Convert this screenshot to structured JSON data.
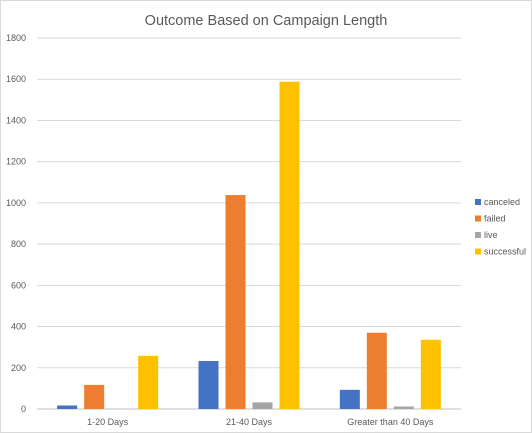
{
  "chart_data": {
    "type": "bar",
    "title": "Outcome Based on Campaign Length",
    "categories": [
      "1-20 Days",
      "21-40 Days",
      "Greater than 40 Days"
    ],
    "series": [
      {
        "name": "canceled",
        "values": [
          17,
          233,
          93
        ],
        "color": "#4472c4"
      },
      {
        "name": "failed",
        "values": [
          117,
          1038,
          370
        ],
        "color": "#ed7d31"
      },
      {
        "name": "live",
        "values": [
          0,
          32,
          12
        ],
        "color": "#a5a5a5"
      },
      {
        "name": "successful",
        "values": [
          258,
          1588,
          336
        ],
        "color": "#ffc000"
      }
    ],
    "ylim": [
      0,
      1800
    ],
    "yticks": [
      0,
      200,
      400,
      600,
      800,
      1000,
      1200,
      1400,
      1600,
      1800
    ],
    "grid": true,
    "legend_position": "right"
  }
}
